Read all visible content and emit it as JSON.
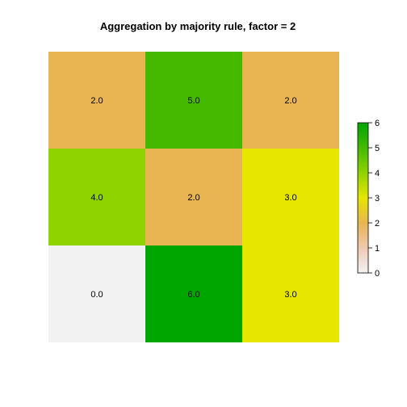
{
  "chart_data": {
    "type": "heatmap",
    "title": "Aggregation by majority rule, factor = 2",
    "rows": 3,
    "cols": 3,
    "values": [
      [
        2,
        5,
        2
      ],
      [
        4,
        2,
        3
      ],
      [
        0,
        6,
        3
      ]
    ],
    "cell_labels": [
      [
        "2.0",
        "5.0",
        "2.0"
      ],
      [
        "4.0",
        "2.0",
        "3.0"
      ],
      [
        "0.0",
        "6.0",
        "3.0"
      ]
    ],
    "legend": {
      "min": 0,
      "max": 6,
      "ticks": [
        0,
        1,
        2,
        3,
        4,
        5,
        6
      ],
      "tick_labels": [
        "0",
        "1",
        "2",
        "3",
        "4",
        "5",
        "6"
      ],
      "placement": "right"
    },
    "colors": {
      "0": "#f2f2f2",
      "1": "#efc9b1",
      "2": "#e8b552",
      "3": "#e6e600",
      "4": "#8fd300",
      "5": "#44b900",
      "6": "#00a600"
    },
    "gradient_stops": [
      "#f2f2f2",
      "#efc9b1",
      "#e8b552",
      "#e6e600",
      "#8fd300",
      "#44b900",
      "#00a600"
    ]
  }
}
